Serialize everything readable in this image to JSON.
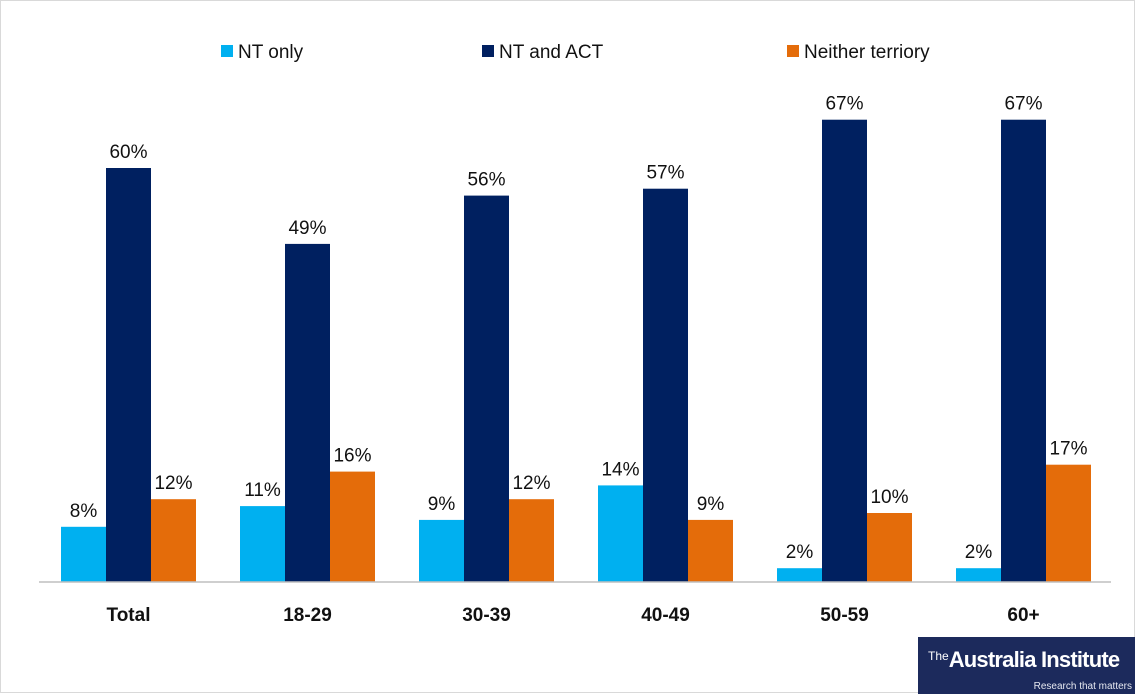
{
  "chart_data": {
    "type": "bar",
    "categories": [
      "Total",
      "18-29",
      "30-39",
      "40-49",
      "50-59",
      "60+"
    ],
    "series": [
      {
        "name": "NT only",
        "color": "#00b0f0",
        "values": [
          8,
          11,
          9,
          14,
          2,
          2
        ],
        "labels": [
          "8%",
          "11%",
          "9%",
          "14%",
          "2%",
          "2%"
        ]
      },
      {
        "name": "NT and ACT",
        "color": "#002060",
        "values": [
          60,
          49,
          56,
          57,
          67,
          67
        ],
        "labels": [
          "60%",
          "49%",
          "56%",
          "57%",
          "67%",
          "67%"
        ]
      },
      {
        "name": "Neither terriory",
        "color": "#e46c0a",
        "values": [
          12,
          16,
          12,
          9,
          10,
          17
        ],
        "labels": [
          "12%",
          "16%",
          "12%",
          "9%",
          "10%",
          "17%"
        ]
      }
    ],
    "legend_position": "top",
    "grid": false,
    "ylim": [
      0,
      70
    ]
  },
  "logo": {
    "the": "The",
    "name": "Australia Institute",
    "tagline": "Research that matters"
  }
}
